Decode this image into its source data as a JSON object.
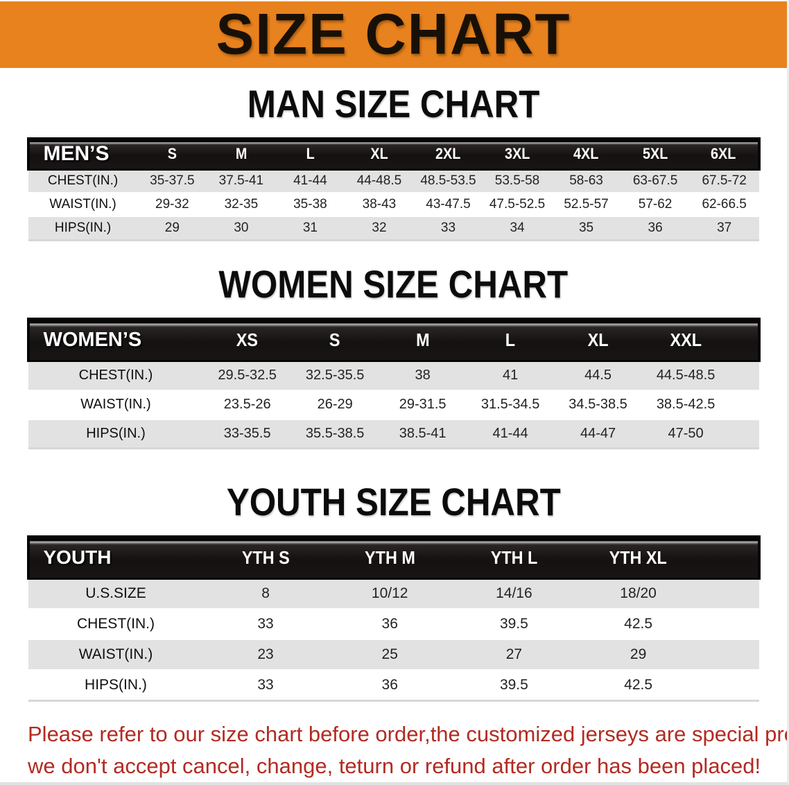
{
  "banner": {
    "title": "SIZE CHART"
  },
  "theme": {
    "banner_orange": "#E8821E",
    "header_bar_black": "#141111",
    "band_gray": "#E2E2E2",
    "warning_red": "#B22B22"
  },
  "sections": [
    {
      "heading": "MAN SIZE CHART",
      "table": {
        "corner_label": "MEN’S",
        "columns": [
          "S",
          "M",
          "L",
          "XL",
          "2XL",
          "3XL",
          "4XL",
          "5XL",
          "6XL"
        ],
        "rows": [
          {
            "label": "CHEST(IN.)",
            "values": [
              "35-37.5",
              "37.5-41",
              "41-44",
              "44-48.5",
              "48.5-53.5",
              "53.5-58",
              "58-63",
              "63-67.5",
              "67.5-72"
            ]
          },
          {
            "label": "WAIST(IN.)",
            "values": [
              "29-32",
              "32-35",
              "35-38",
              "38-43",
              "43-47.5",
              "47.5-52.5",
              "52.5-57",
              "57-62",
              "62-66.5"
            ]
          },
          {
            "label": "HIPS(IN.)",
            "values": [
              "29",
              "30",
              "31",
              "32",
              "33",
              "34",
              "35",
              "36",
              "37"
            ]
          }
        ]
      }
    },
    {
      "heading": "WOMEN SIZE CHART",
      "table": {
        "corner_label": "WOMEN’S",
        "columns": [
          "XS",
          "S",
          "M",
          "L",
          "XL",
          "XXL"
        ],
        "rows": [
          {
            "label": "CHEST(IN.)",
            "values": [
              "29.5-32.5",
              "32.5-35.5",
              "38",
              "41",
              "44.5",
              "44.5-48.5"
            ]
          },
          {
            "label": "WAIST(IN.)",
            "values": [
              "23.5-26",
              "26-29",
              "29-31.5",
              "31.5-34.5",
              "34.5-38.5",
              "38.5-42.5"
            ]
          },
          {
            "label": "HIPS(IN.)",
            "values": [
              "33-35.5",
              "35.5-38.5",
              "38.5-41",
              "41-44",
              "44-47",
              "47-50"
            ]
          }
        ]
      }
    },
    {
      "heading": "YOUTH SIZE CHART",
      "table": {
        "corner_label": "YOUTH",
        "columns": [
          "YTH S",
          "YTH M",
          "YTH L",
          "YTH XL"
        ],
        "rows": [
          {
            "label": "U.S.SIZE",
            "values": [
              "8",
              "10/12",
              "14/16",
              "18/20"
            ]
          },
          {
            "label": "CHEST(IN.)",
            "values": [
              "33",
              "36",
              "39.5",
              "42.5"
            ]
          },
          {
            "label": "WAIST(IN.)",
            "values": [
              "23",
              "25",
              "27",
              "29"
            ]
          },
          {
            "label": "HIPS(IN.)",
            "values": [
              "33",
              "36",
              "39.5",
              "42.5"
            ]
          }
        ]
      }
    }
  ],
  "disclaimer": {
    "line1": "Please refer to our size chart before order,the customized jerseys are special products,",
    "line2": "we don't accept cancel, change, teturn or refund after order has been placed!"
  }
}
